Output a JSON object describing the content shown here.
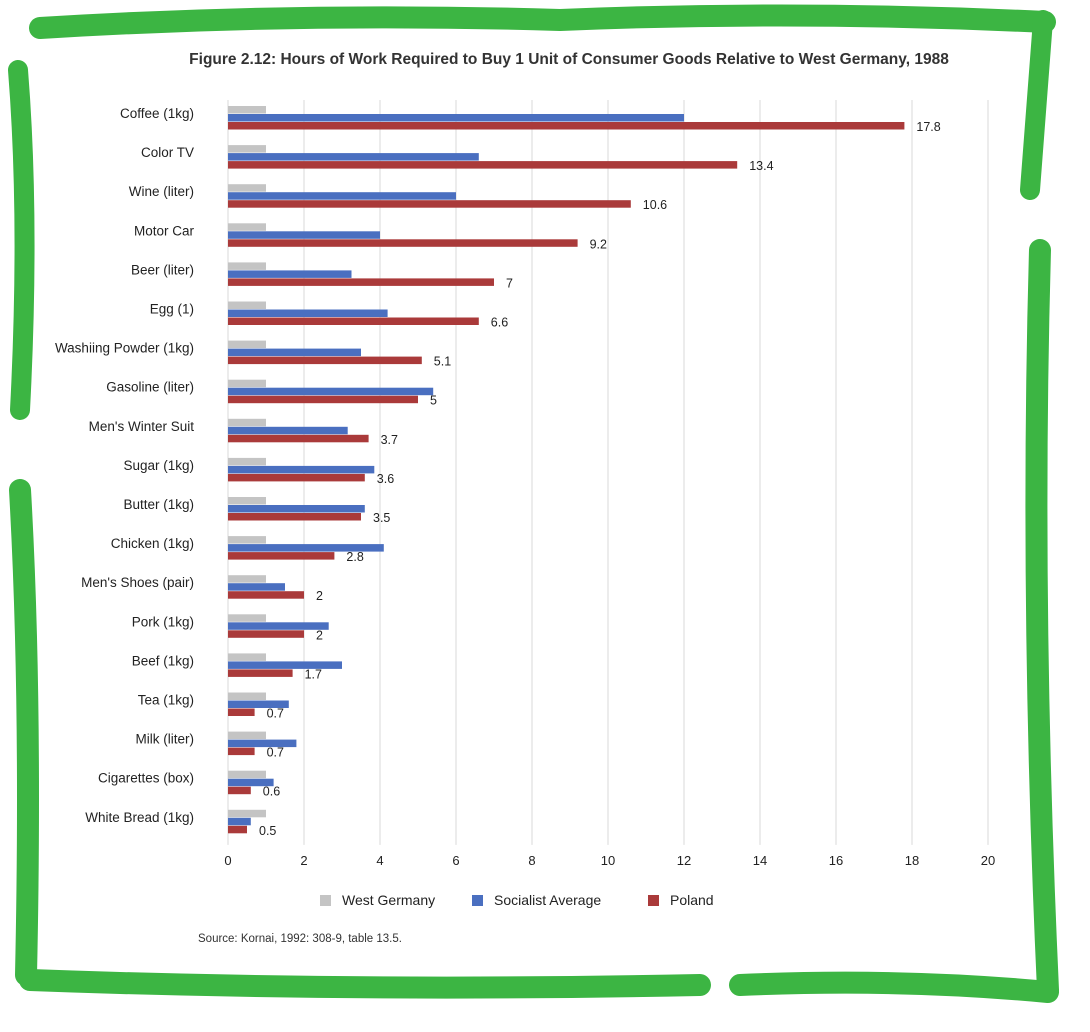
{
  "chart_data": {
    "type": "bar",
    "orientation": "horizontal",
    "title": "Figure 2.12: Hours of Work Required to Buy 1 Unit of Consumer Goods Relative to West Germany, 1988",
    "source": "Source: Kornai, 1992: 308-9, table 13.5.",
    "categories": [
      "Coffee (1kg)",
      "Color TV",
      "Wine (liter)",
      "Motor Car",
      "Beer (liter)",
      "Egg (1)",
      "Washiing Powder (1kg)",
      "Gasoline (liter)",
      "Men's Winter Suit",
      "Sugar (1kg)",
      "Butter (1kg)",
      "Chicken (1kg)",
      "Men's Shoes (pair)",
      "Pork (1kg)",
      "Beef (1kg)",
      "Tea (1kg)",
      "Milk (liter)",
      "Cigarettes (box)",
      "White Bread (1kg)"
    ],
    "series": [
      {
        "name": "West Germany",
        "color": "#c4c4c4",
        "values": [
          1,
          1,
          1,
          1,
          1,
          1,
          1,
          1,
          1,
          1,
          1,
          1,
          1,
          1,
          1,
          1,
          1,
          1,
          1
        ]
      },
      {
        "name": "Socialist Average",
        "color": "#4a6fc0",
        "values": [
          12,
          6.6,
          6,
          4,
          3.25,
          4.2,
          3.5,
          5.4,
          3.15,
          3.85,
          3.6,
          4.1,
          1.5,
          2.65,
          3,
          1.6,
          1.8,
          1.2,
          0.6
        ]
      },
      {
        "name": "Poland",
        "color": "#aa3a3a",
        "values": [
          17.8,
          13.4,
          10.6,
          9.2,
          7,
          6.6,
          5.1,
          5,
          3.7,
          3.6,
          3.5,
          2.8,
          2,
          2,
          1.7,
          0.7,
          0.7,
          0.6,
          0.5
        ]
      }
    ],
    "data_labels": [
      "17.8",
      "13.4",
      "10.6",
      "9.2",
      "7",
      "6.6",
      "5.1",
      "5",
      "3.7",
      "3.6",
      "3.5",
      "2.8",
      "2",
      "2",
      "1.7",
      "0.7",
      "0.7",
      "0.6",
      "0.5"
    ],
    "xlim": [
      0,
      20
    ],
    "xticks": [
      0,
      2,
      4,
      6,
      8,
      10,
      12,
      14,
      16,
      18,
      20
    ],
    "grid": "vertical",
    "legend_position": "bottom",
    "frame_color": "#3cb543"
  }
}
